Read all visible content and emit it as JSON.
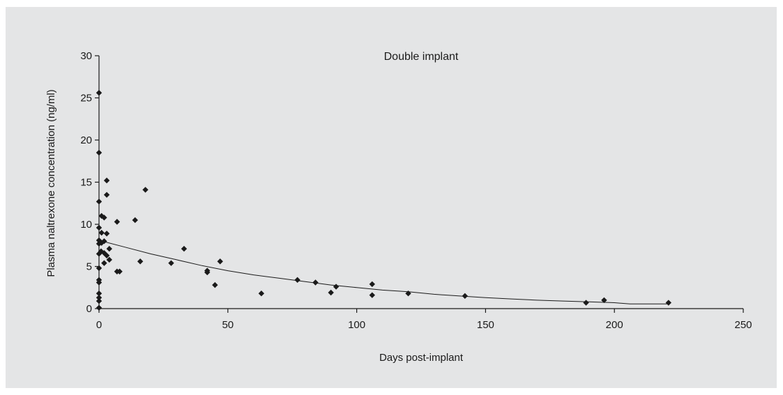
{
  "chart_data": {
    "type": "scatter",
    "title": "Double implant",
    "xlabel": "Days post-implant",
    "ylabel": "Plasma naltrexone concentration (ng/ml)",
    "xlim": [
      0,
      250
    ],
    "ylim": [
      0,
      30
    ],
    "xticks": [
      0,
      50,
      100,
      150,
      200,
      250
    ],
    "yticks": [
      0,
      5,
      10,
      15,
      20,
      25,
      30
    ],
    "grid": false,
    "legend": "none",
    "colors": {
      "background": "#e4e5e6",
      "marker": "#1a1a1a",
      "trend": "#1a1a1a"
    },
    "series": [
      {
        "values": [
          [
            0,
            25.6
          ],
          [
            0,
            18.5
          ],
          [
            0,
            12.7
          ],
          [
            0,
            9.6
          ],
          [
            0,
            8.1
          ],
          [
            0,
            7.7
          ],
          [
            0,
            6.5
          ],
          [
            0,
            4.8
          ],
          [
            0,
            3.4
          ],
          [
            0,
            3.1
          ],
          [
            0,
            1.8
          ],
          [
            0,
            1.3
          ],
          [
            0,
            0.9
          ],
          [
            0,
            0.1
          ],
          [
            0.5,
            7.9
          ],
          [
            0.8,
            6.8
          ],
          [
            1,
            11.0
          ],
          [
            1,
            9.0
          ],
          [
            1,
            7.8
          ],
          [
            2,
            10.8
          ],
          [
            2,
            8.0
          ],
          [
            2,
            6.6
          ],
          [
            2,
            5.4
          ],
          [
            3,
            15.2
          ],
          [
            3,
            13.5
          ],
          [
            3,
            8.9
          ],
          [
            3,
            6.3
          ],
          [
            4,
            7.1
          ],
          [
            4,
            5.8
          ],
          [
            7,
            10.3
          ],
          [
            7,
            4.4
          ],
          [
            8,
            4.4
          ],
          [
            14,
            10.5
          ],
          [
            16,
            5.6
          ],
          [
            18,
            14.1
          ],
          [
            28,
            5.4
          ],
          [
            33,
            7.1
          ],
          [
            42,
            4.5
          ],
          [
            42,
            4.3
          ],
          [
            45,
            2.8
          ],
          [
            47,
            5.6
          ],
          [
            63,
            1.8
          ],
          [
            77,
            3.4
          ],
          [
            84,
            3.1
          ],
          [
            90,
            1.9
          ],
          [
            92,
            2.6
          ],
          [
            106,
            2.9
          ],
          [
            106,
            1.6
          ],
          [
            120,
            1.8
          ],
          [
            142,
            1.5
          ],
          [
            189,
            0.7
          ],
          [
            196,
            1.0
          ],
          [
            221,
            0.7
          ]
        ]
      }
    ],
    "trend_line": {
      "x": [
        0,
        10,
        20,
        30,
        40,
        50,
        60,
        70,
        80,
        90,
        100,
        110,
        120,
        130,
        140,
        150,
        160,
        170,
        180,
        190,
        200,
        206,
        221
      ],
      "y": [
        8.1,
        7.3,
        6.5,
        5.8,
        5.1,
        4.5,
        4.0,
        3.6,
        3.2,
        2.8,
        2.5,
        2.2,
        2.0,
        1.7,
        1.5,
        1.3,
        1.15,
        1.0,
        0.9,
        0.8,
        0.7,
        0.55,
        0.55
      ]
    }
  }
}
